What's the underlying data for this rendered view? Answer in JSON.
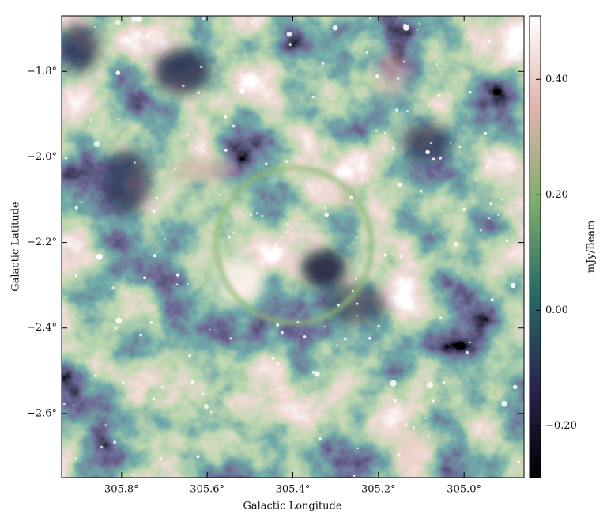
{
  "chart_data": {
    "type": "image",
    "xlabel": "Galactic Longitude",
    "ylabel": "Galactic Latitude",
    "xlim": [
      305.94,
      304.86
    ],
    "ylim": [
      -2.75,
      -1.67
    ],
    "xticks": [
      {
        "value": 305.8,
        "label": "305.8°"
      },
      {
        "value": 305.6,
        "label": "305.6°"
      },
      {
        "value": 305.4,
        "label": "305.4°"
      },
      {
        "value": 305.2,
        "label": "305.2°"
      },
      {
        "value": 305.0,
        "label": "305.0°"
      }
    ],
    "yticks": [
      {
        "value": -1.8,
        "label": "−1.8°"
      },
      {
        "value": -2.0,
        "label": "−2.0°"
      },
      {
        "value": -2.2,
        "label": "−2.2°"
      },
      {
        "value": -2.4,
        "label": "−2.4°"
      },
      {
        "value": -2.6,
        "label": "−2.6°"
      }
    ],
    "colorbar": {
      "label": "mJy/Beam",
      "clim": [
        -0.29,
        0.51
      ],
      "ticks": [
        {
          "value": -0.2,
          "label": "−0.20"
        },
        {
          "value": 0,
          "label": "0.00"
        },
        {
          "value": 0.2,
          "label": "0.20"
        },
        {
          "value": 0.4,
          "label": "0.40"
        }
      ],
      "colormap": [
        "#000000",
        "#282650",
        "#2a6a66",
        "#7fae6d",
        "#e0b3ad",
        "#ffffff"
      ]
    }
  }
}
